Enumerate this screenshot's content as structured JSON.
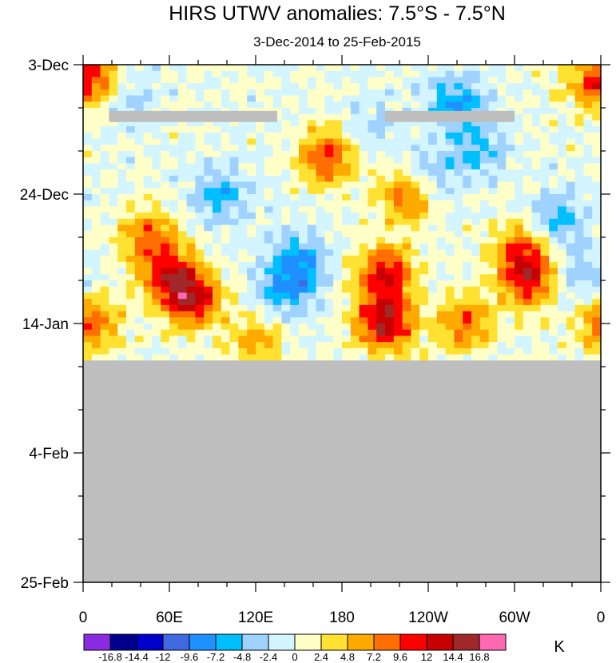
{
  "chart_data": {
    "type": "heatmap",
    "title": "HIRS UTWV anomalies: 7.5°S - 7.5°N",
    "subtitle": "3-Dec-2014 to 25-Feb-2015",
    "x_tick_labels": [
      "0",
      "60E",
      "120E",
      "180",
      "120W",
      "60W",
      "0"
    ],
    "x_tick_values_deg_east": [
      0,
      60,
      120,
      180,
      240,
      300,
      360
    ],
    "y_tick_labels": [
      "3-Dec",
      "24-Dec",
      "14-Jan",
      "4-Feb",
      "25-Feb"
    ],
    "y_tick_dates": [
      "2014-12-03",
      "2014-12-24",
      "2015-01-14",
      "2015-02-04",
      "2015-02-25"
    ],
    "y_axis_reversed": true,
    "data_valid_through": "2015-01-20",
    "missing_color": "#bebebe",
    "missing_gap_rows": [
      {
        "date": "2014-12-11",
        "lon_from": 18,
        "lon_to": 135
      },
      {
        "date": "2014-12-11",
        "lon_from": 210,
        "lon_to": 300
      }
    ],
    "colorbar": {
      "unit": "K",
      "labels": [
        "-16.8",
        "-14.4",
        "-12",
        "-9.6",
        "-7.2",
        "-4.8",
        "-2.4",
        "0",
        "2.4",
        "4.8",
        "7.2",
        "9.6",
        "12",
        "14.4",
        "16.8"
      ],
      "levels": [
        -16.8,
        -14.4,
        -12,
        -9.6,
        -7.2,
        -4.8,
        -2.4,
        0,
        2.4,
        4.8,
        7.2,
        9.6,
        12,
        14.4,
        16.8
      ],
      "colors": [
        "#8a2be2",
        "#00008b",
        "#0000cd",
        "#4169e1",
        "#1e90ff",
        "#00bfff",
        "#a0d2ff",
        "#d2f5ff",
        "#ffffc8",
        "#ffe132",
        "#ffaa00",
        "#ff6e00",
        "#ff0000",
        "#c80000",
        "#a02828",
        "#ff69b4"
      ]
    },
    "anomaly_features": [
      {
        "lon": 75,
        "date": "2015-01-10",
        "value": 13
      },
      {
        "lon": 60,
        "date": "2015-01-06",
        "value": 10
      },
      {
        "lon": 45,
        "date": "2014-12-31",
        "value": 8
      },
      {
        "lon": 5,
        "date": "2015-01-14",
        "value": 9
      },
      {
        "lon": 210,
        "date": "2015-01-14",
        "value": 14
      },
      {
        "lon": 210,
        "date": "2015-01-06",
        "value": 12
      },
      {
        "lon": 225,
        "date": "2014-12-24",
        "value": 9
      },
      {
        "lon": 170,
        "date": "2014-12-18",
        "value": 10
      },
      {
        "lon": 310,
        "date": "2015-01-07",
        "value": 11
      },
      {
        "lon": 305,
        "date": "2015-01-02",
        "value": 8
      },
      {
        "lon": 355,
        "date": "2014-12-06",
        "value": 7
      },
      {
        "lon": 10,
        "date": "2014-12-05",
        "value": 7
      },
      {
        "lon": 120,
        "date": "2015-01-17",
        "value": 6
      },
      {
        "lon": 265,
        "date": "2015-01-14",
        "value": 8
      },
      {
        "lon": 95,
        "date": "2014-12-24",
        "value": -6
      },
      {
        "lon": 150,
        "date": "2015-01-04",
        "value": -7
      },
      {
        "lon": 140,
        "date": "2015-01-09",
        "value": -6
      },
      {
        "lon": 260,
        "date": "2014-12-09",
        "value": -7
      },
      {
        "lon": 240,
        "date": "2014-12-21",
        "value": -5
      },
      {
        "lon": 330,
        "date": "2014-12-28",
        "value": -6
      },
      {
        "lon": 30,
        "date": "2014-12-08",
        "value": -4
      },
      {
        "lon": 275,
        "date": "2014-12-17",
        "value": -5
      },
      {
        "lon": 345,
        "date": "2015-01-06",
        "value": -4
      },
      {
        "lon": 200,
        "date": "2014-12-13",
        "value": -3
      }
    ]
  }
}
